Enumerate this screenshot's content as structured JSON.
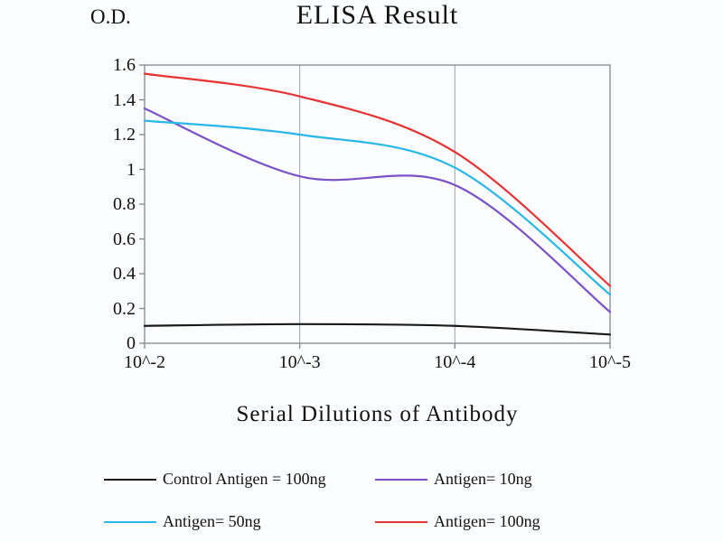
{
  "chart_data": {
    "type": "line",
    "title": "ELISA Result",
    "ylabel": "O.D.",
    "xlabel": "Serial Dilutions of Antibody",
    "categories": [
      "10^-2",
      "10^-3",
      "10^-4",
      "10^-5"
    ],
    "ylim": [
      0,
      1.6
    ],
    "yticks": [
      0,
      0.2,
      0.4,
      0.6,
      0.8,
      1,
      1.2,
      1.4,
      1.6
    ],
    "grid": "vertical",
    "legend_position": "bottom",
    "axis_color": "#7d8890",
    "grid_color": "#9aa5ad",
    "series": [
      {
        "name": "Control Antigen = 100ng",
        "color": "#1a1a1a",
        "values": [
          0.1,
          0.11,
          0.1,
          0.05
        ]
      },
      {
        "name": "Antigen= 10ng",
        "color": "#7a52c7",
        "values": [
          1.35,
          0.96,
          0.91,
          0.18
        ]
      },
      {
        "name": "Antigen= 50ng",
        "color": "#29b6e8",
        "values": [
          1.28,
          1.2,
          1.01,
          0.28
        ]
      },
      {
        "name": "Antigen= 100ng",
        "color": "#e63333",
        "values": [
          1.55,
          1.42,
          1.1,
          0.33
        ]
      }
    ]
  }
}
